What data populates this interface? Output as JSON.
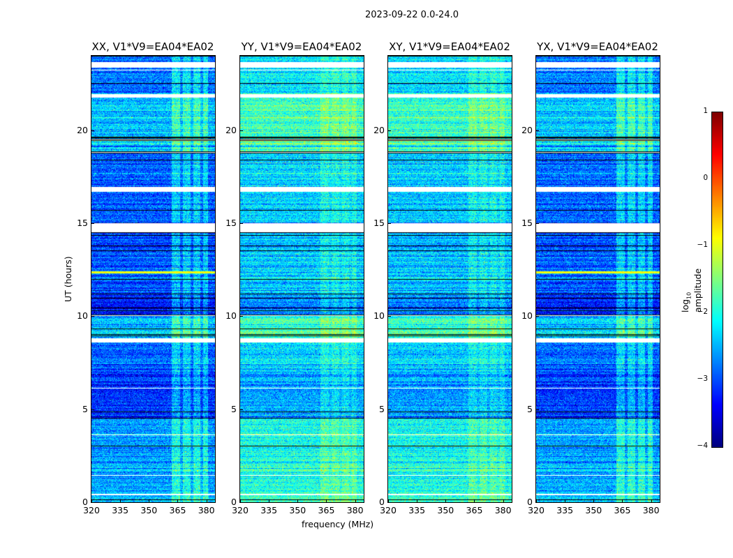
{
  "chart_data": {
    "type": "heatmap",
    "title": "2023-09-22 0.0-24.0",
    "xlabel": "frequency (MHz)",
    "ylabel": "UT (hours)",
    "xlim": [
      320,
      384.5
    ],
    "ylim": [
      0,
      24
    ],
    "xticks": [
      "320",
      "335",
      "350",
      "365",
      "380"
    ],
    "xtick_values": [
      320,
      335,
      350,
      365,
      380
    ],
    "yticks": [
      "0",
      "5",
      "10",
      "15",
      "20"
    ],
    "ytick_values": [
      0,
      5,
      10,
      15,
      20
    ],
    "colorbar": {
      "label_prefix": "log",
      "label_sub": "10",
      "label_suffix": " amplitude",
      "range": [
        -4,
        1
      ],
      "ticks": [
        "1",
        "0",
        "−1",
        "−2",
        "−3",
        "−4"
      ],
      "tick_values": [
        1,
        0,
        -1,
        -2,
        -3,
        -4
      ],
      "colormap": "jet"
    },
    "panels": [
      {
        "title": "XX, V1*V9=EA04*EA02",
        "level_offset": 0.0
      },
      {
        "title": "YY, V1*V9=EA04*EA02",
        "level_offset": 0.6
      },
      {
        "title": "XY, V1*V9=EA04*EA02",
        "level_offset": 0.55
      },
      {
        "title": "YX, V1*V9=EA04*EA02",
        "level_offset": 0.05
      }
    ],
    "time_segments_log_amplitude": [
      {
        "from": 0,
        "to": 1.3,
        "level": -2.5
      },
      {
        "from": 1.3,
        "to": 4.5,
        "level": -2.6
      },
      {
        "from": 4.5,
        "to": 7.0,
        "level": -3.2
      },
      {
        "from": 7.0,
        "to": 8.6,
        "level": -2.9
      },
      {
        "from": 8.6,
        "to": 10.0,
        "level": -2.4
      },
      {
        "from": 10.0,
        "to": 11.1,
        "level": -3.3
      },
      {
        "from": 11.1,
        "to": 14.4,
        "level": -3.0
      },
      {
        "from": 14.4,
        "to": 16.7,
        "level": -2.9
      },
      {
        "from": 16.7,
        "to": 18.8,
        "level": -2.9
      },
      {
        "from": 18.8,
        "to": 21.7,
        "level": -2.4
      },
      {
        "from": 21.7,
        "to": 24.0,
        "level": -2.8
      }
    ],
    "flagged_hours": [
      [
        23.35,
        23.65
      ],
      [
        23.2,
        23.24
      ],
      [
        21.75,
        21.95
      ],
      [
        18.78,
        18.84
      ],
      [
        16.7,
        16.95
      ],
      [
        14.5,
        15.0
      ],
      [
        8.6,
        8.8
      ],
      [
        1.42,
        1.48
      ],
      [
        0.38,
        0.44
      ],
      [
        10.0,
        10.05
      ],
      [
        6.1,
        6.15
      ],
      [
        3.6,
        3.64
      ],
      [
        19.45,
        19.5
      ]
    ],
    "rfi_band_mhz": [
      362,
      381
    ],
    "rfi_boost": 0.6
  }
}
